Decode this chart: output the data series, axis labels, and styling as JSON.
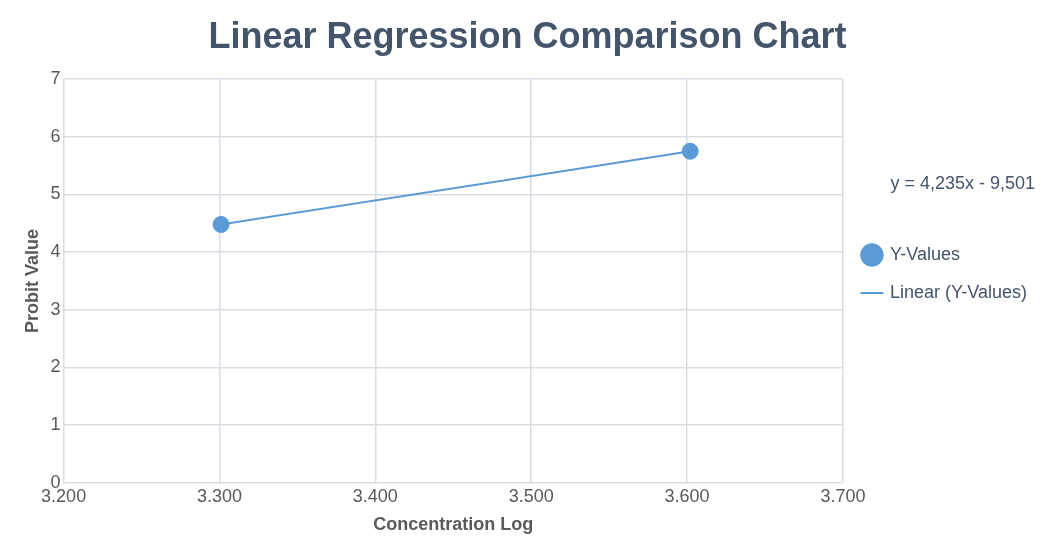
{
  "chart_data": {
    "type": "scatter",
    "title": "Linear Regression Comparison Chart",
    "xlabel": "Concentration Log",
    "ylabel": "Probit Value",
    "series": [
      {
        "name": "Y-Values",
        "color": "#5b9bd5",
        "marker": "circle",
        "values": [
          4.48,
          5.75
        ]
      },
      {
        "name": "Linear (Y-Values)",
        "type": "line",
        "color": "#5b9bd5",
        "marker": "none",
        "values": [
          4.48,
          5.75
        ]
      }
    ],
    "x": [
      3.301,
      3.602
    ],
    "xlim": [
      3.2,
      3.7
    ],
    "xticks": [
      {
        "value": 3.2,
        "label": "3.200"
      },
      {
        "value": 3.3,
        "label": "3.300"
      },
      {
        "value": 3.4,
        "label": "3.400"
      },
      {
        "value": 3.5,
        "label": "3.500"
      },
      {
        "value": 3.6,
        "label": "3.600"
      },
      {
        "value": 3.7,
        "label": "3.700"
      }
    ],
    "ylim": [
      0,
      7
    ],
    "yticks": [
      0,
      1,
      2,
      3,
      4,
      5,
      6,
      7
    ],
    "grid": true,
    "legend": "right",
    "line_style": "solid",
    "annotations": [
      "y = 4,235x - 9,501"
    ]
  }
}
